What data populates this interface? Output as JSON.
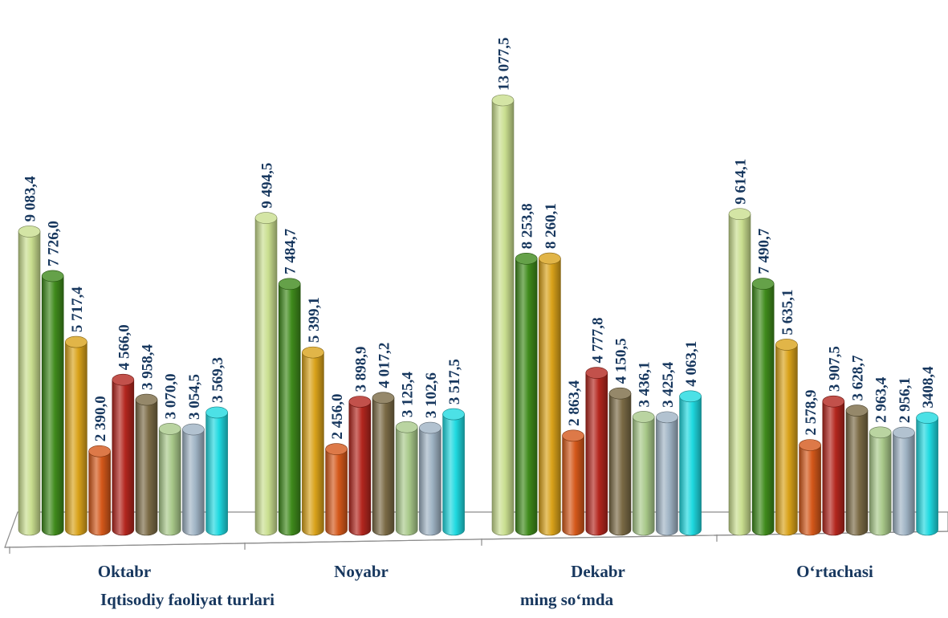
{
  "chart_data": {
    "type": "bar",
    "categories": [
      "Oktabr",
      "Noyabr",
      "Dekabr",
      "O‘rtachasi"
    ],
    "series": [
      {
        "color": "#c9de8f",
        "values": [
          9083.4,
          9494.5,
          13077.5,
          9614.1
        ],
        "labels": [
          "9 083,4",
          "9 494,5",
          "13 077,5",
          "9 614,1"
        ]
      },
      {
        "color": "#3f8a1c",
        "values": [
          7726.0,
          7484.7,
          8253.8,
          7490.7
        ],
        "labels": [
          "7 726,0",
          "7 484,7",
          "8 253,8",
          "7 490,7"
        ]
      },
      {
        "color": "#d9a21a",
        "values": [
          5717.4,
          5399.1,
          8260.1,
          5635.1
        ],
        "labels": [
          "5 717,4",
          "5 399,1",
          "8 260,1",
          "5 635,1"
        ]
      },
      {
        "color": "#d4581a",
        "values": [
          2390.0,
          2456.0,
          2863.4,
          2578.9
        ],
        "labels": [
          "2 390,0",
          "2 456,0",
          "2 863,4",
          "2 578,9"
        ]
      },
      {
        "color": "#b3261e",
        "values": [
          4566.0,
          3898.9,
          4777.8,
          3907.5
        ],
        "labels": [
          "4 566,0",
          "3 898,9",
          "4 777,8",
          "3 907,5"
        ]
      },
      {
        "color": "#7a6a45",
        "values": [
          3958.4,
          4017.2,
          4150.5,
          3628.7
        ],
        "labels": [
          "3 958,4",
          "4 017,2",
          "4 150,5",
          "3 628,7"
        ]
      },
      {
        "color": "#a9c98a",
        "values": [
          3070.0,
          3125.4,
          3436.1,
          2963.4
        ],
        "labels": [
          "3 070,0",
          "3 125,4",
          "3 436,1",
          "2 963,4"
        ]
      },
      {
        "color": "#9fb3c4",
        "values": [
          3054.5,
          3102.6,
          3425.4,
          2956.1
        ],
        "labels": [
          "3 054,5",
          "3 102,6",
          "3 425,4",
          "2 956,1"
        ]
      },
      {
        "color": "#1fd9e0",
        "values": [
          3569.3,
          3517.5,
          4063.1,
          3408.4
        ],
        "labels": [
          "3 569,3",
          "3 517,5",
          "4 063,1",
          "3408,4"
        ]
      }
    ],
    "xlabel": "Iqtisodiy faoliyat turlari",
    "unit_note": "ming so‘mda",
    "ylim": [
      0,
      13077.5
    ],
    "grid": false,
    "legend": "none"
  }
}
